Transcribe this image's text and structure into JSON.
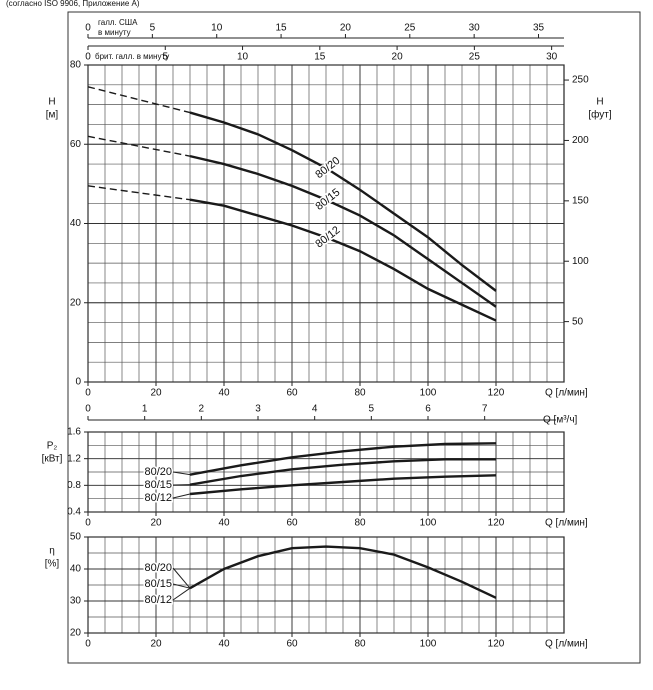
{
  "caption": "(согласно ISO 9906, Приложение А)",
  "chart_data": [
    {
      "type": "line",
      "y_label": "H",
      "y_unit": "[м]",
      "y2_label": "H",
      "y2_unit": "[фут]",
      "x_label": "Q [л/мин]",
      "xlim": [
        0,
        140
      ],
      "xticks": [
        0,
        20,
        40,
        60,
        80,
        100,
        120
      ],
      "ylim": [
        0,
        80
      ],
      "yticks": [
        0,
        20,
        40,
        60,
        80
      ],
      "y2lim": [
        0,
        262.47
      ],
      "y2ticks": [
        50,
        100,
        150,
        200,
        250
      ],
      "grid": true,
      "minor_grid_step_x": 5,
      "minor_grid_step_y": 5,
      "dashed_below_x": 30,
      "x": [
        0,
        30,
        40,
        50,
        60,
        70,
        80,
        90,
        100,
        110,
        120
      ],
      "series": [
        {
          "name": "80/20",
          "color": "#1a1a1a",
          "values": [
            74.5,
            68,
            65.5,
            62.5,
            58.5,
            54,
            48.5,
            42.5,
            36.5,
            29.5,
            23
          ]
        },
        {
          "name": "80/15",
          "color": "#1a1a1a",
          "values": [
            62,
            57,
            55,
            52.5,
            49.5,
            46,
            42,
            37,
            31,
            25,
            19
          ]
        },
        {
          "name": "80/12",
          "color": "#1a1a1a",
          "values": [
            49.5,
            46,
            44.5,
            42,
            39.5,
            36.5,
            33,
            28.5,
            23.5,
            19.5,
            15.5
          ]
        }
      ],
      "top_axes": [
        {
          "label": [
            "галл. США",
            "в минуту"
          ],
          "lim": [
            0,
            36.98
          ],
          "ticks": [
            0,
            5,
            10,
            15,
            20,
            25,
            30,
            35
          ]
        },
        {
          "label": [
            "брит. галл. в минуту"
          ],
          "lim": [
            0,
            30.8
          ],
          "ticks": [
            0,
            5,
            10,
            15,
            20,
            25,
            30
          ]
        }
      ]
    },
    {
      "type": "line",
      "y_label": "P₂",
      "y_unit": "[кВт]",
      "x_label": "Q [л/мин]",
      "xlim": [
        0,
        140
      ],
      "xticks": [
        0,
        20,
        40,
        60,
        80,
        100,
        120
      ],
      "ylim": [
        0.4,
        1.6
      ],
      "yticks": [
        0.4,
        0.8,
        1.2,
        1.6
      ],
      "x2_label": "Q [м³/ч]",
      "x2lim": [
        0,
        8.4
      ],
      "x2ticks": [
        0,
        1,
        2,
        3,
        4,
        5,
        6,
        7
      ],
      "grid": true,
      "minor_grid_step_x": 5,
      "minor_grid_step_y": 0.2,
      "x": [
        30,
        45,
        60,
        75,
        90,
        105,
        120
      ],
      "series": [
        {
          "name": "80/20",
          "color": "#1a1a1a",
          "values": [
            0.96,
            1.1,
            1.22,
            1.31,
            1.38,
            1.42,
            1.43
          ]
        },
        {
          "name": "80/15",
          "color": "#1a1a1a",
          "values": [
            0.81,
            0.94,
            1.04,
            1.11,
            1.16,
            1.19,
            1.19
          ]
        },
        {
          "name": "80/12",
          "color": "#1a1a1a",
          "values": [
            0.67,
            0.74,
            0.8,
            0.85,
            0.9,
            0.93,
            0.95
          ]
        }
      ]
    },
    {
      "type": "line",
      "y_label": "η",
      "y_unit": "[%]",
      "x_label": "Q [л/мин]",
      "xlim": [
        0,
        140
      ],
      "xticks": [
        0,
        20,
        40,
        60,
        80,
        100,
        120
      ],
      "ylim": [
        20,
        50
      ],
      "yticks": [
        20,
        30,
        40,
        50
      ],
      "grid": true,
      "minor_grid_step_x": 5,
      "minor_grid_step_y": 5,
      "curve_labels": [
        "80/20",
        "80/15",
        "80/12"
      ],
      "x": [
        30,
        40,
        50,
        60,
        70,
        80,
        90,
        100,
        110,
        120
      ],
      "series": [
        {
          "color": "#1a1a1a",
          "values": [
            34,
            40,
            44,
            46.5,
            47,
            46.5,
            44.5,
            40.5,
            36,
            31
          ]
        }
      ]
    }
  ]
}
